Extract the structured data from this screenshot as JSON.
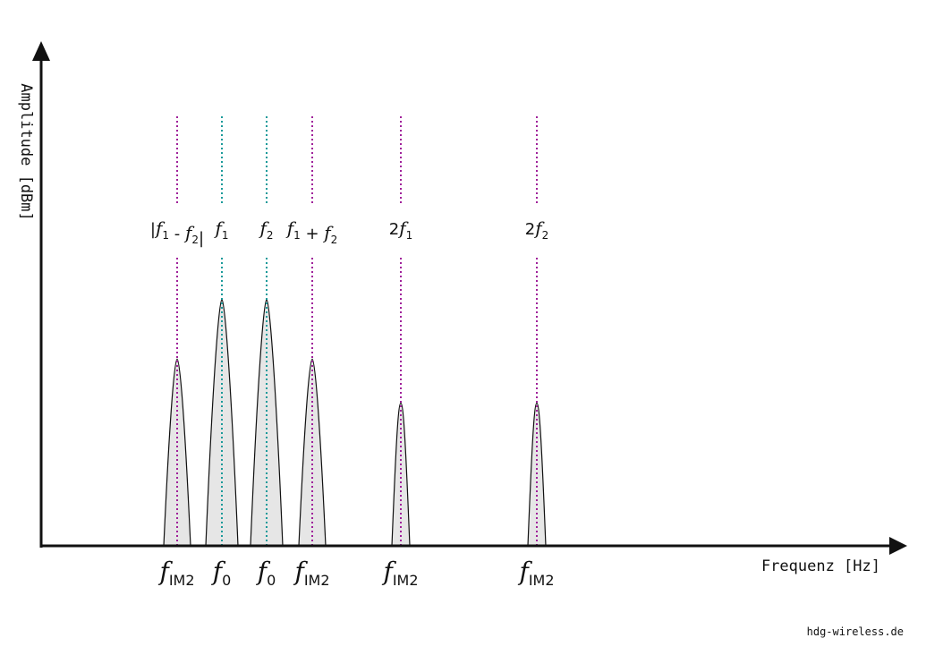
{
  "axes": {
    "y_label": "Amplitude [dBm]",
    "x_label": "Frequenz [Hz]"
  },
  "credit": "hdg-wireless.de",
  "colors": {
    "peak_fill": "#e6e6e6",
    "fundamental_line": "#1a9a9a",
    "product_line": "#a0209a",
    "axis": "#111111"
  },
  "peaks": [
    {
      "id": "diff",
      "amplitude": 0.72,
      "line": "product",
      "top_label": [
        "|",
        "f",
        "1",
        " - ",
        "f",
        "2",
        "|"
      ],
      "bottom_main": "f",
      "bottom_sub": "IM2"
    },
    {
      "id": "f1",
      "amplitude": 0.95,
      "line": "fundamental",
      "top_label": [
        "",
        "f",
        "1"
      ],
      "bottom_main": "f",
      "bottom_sub": "0"
    },
    {
      "id": "f2",
      "amplitude": 0.95,
      "line": "fundamental",
      "top_label": [
        "",
        "f",
        "2"
      ],
      "bottom_main": "f",
      "bottom_sub": "0"
    },
    {
      "id": "sum",
      "amplitude": 0.72,
      "line": "product",
      "top_label": [
        "",
        "f",
        "1",
        " + ",
        "f",
        "2"
      ],
      "bottom_main": "f",
      "bottom_sub": "IM2"
    },
    {
      "id": "h1",
      "amplitude": 0.55,
      "line": "product",
      "top_label": [
        "2",
        "f",
        "1"
      ],
      "bottom_main": "f",
      "bottom_sub": "IM2"
    },
    {
      "id": "h2",
      "amplitude": 0.55,
      "line": "product",
      "top_label": [
        "2",
        "f",
        "2"
      ],
      "bottom_main": "f",
      "bottom_sub": "IM2"
    }
  ]
}
